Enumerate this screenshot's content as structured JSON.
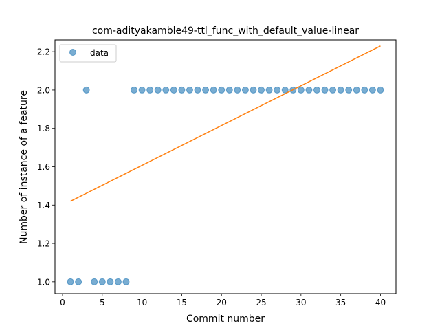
{
  "chart_data": {
    "type": "scatter",
    "title": "com-adityakamble49-ttl_func_with_default_value-linear",
    "xlabel": "Commit number",
    "ylabel": "Number of instance of a feature",
    "xlim": [
      -0.95,
      41.95
    ],
    "ylim": [
      0.9385,
      2.2615
    ],
    "xticks": [
      0,
      5,
      10,
      15,
      20,
      25,
      30,
      35,
      40
    ],
    "yticks": [
      1.0,
      1.2,
      1.4,
      1.6,
      1.8,
      2.0,
      2.2
    ],
    "xtick_labels": [
      "0",
      "5",
      "10",
      "15",
      "20",
      "25",
      "30",
      "35",
      "40"
    ],
    "ytick_labels": [
      "1.0",
      "1.2",
      "1.4",
      "1.6",
      "1.8",
      "2.0",
      "2.2"
    ],
    "grid": false,
    "legend_position": "top-left",
    "series": [
      {
        "name": "data",
        "kind": "scatter",
        "color": "#1f77b4",
        "x": [
          1,
          2,
          3,
          4,
          5,
          6,
          7,
          8,
          9,
          10,
          11,
          12,
          13,
          14,
          15,
          16,
          17,
          18,
          19,
          20,
          21,
          22,
          23,
          24,
          25,
          26,
          27,
          28,
          29,
          30,
          31,
          32,
          33,
          34,
          35,
          36,
          37,
          38,
          39,
          40
        ],
        "y": [
          1,
          1,
          2,
          1,
          1,
          1,
          1,
          1,
          2,
          2,
          2,
          2,
          2,
          2,
          2,
          2,
          2,
          2,
          2,
          2,
          2,
          2,
          2,
          2,
          2,
          2,
          2,
          2,
          2,
          2,
          2,
          2,
          2,
          2,
          2,
          2,
          2,
          2,
          2,
          2
        ]
      },
      {
        "kind": "line",
        "color": "#ff7f0e",
        "x": [
          1,
          40
        ],
        "y": [
          1.42,
          2.23
        ]
      }
    ]
  }
}
